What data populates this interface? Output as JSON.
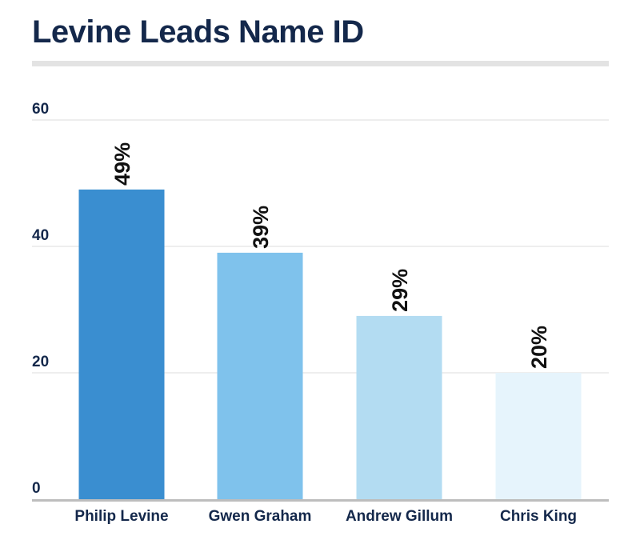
{
  "chart_data": {
    "type": "bar",
    "title": "Levine Leads Name ID",
    "categories": [
      "Philip Levine",
      "Gwen Graham",
      "Andrew Gillum",
      "Chris King"
    ],
    "values": [
      49,
      39,
      29,
      20
    ],
    "data_labels": [
      "49%",
      "39%",
      "29%",
      "20%"
    ],
    "bar_colors": [
      "#3a8ed0",
      "#7fc2ec",
      "#b3dcf2",
      "#e6f4fc"
    ],
    "yticks": [
      "0",
      "20",
      "40",
      "60"
    ],
    "ylim": [
      0,
      60
    ],
    "xlabel": "",
    "ylabel": "",
    "grid": true,
    "legend": false
  }
}
